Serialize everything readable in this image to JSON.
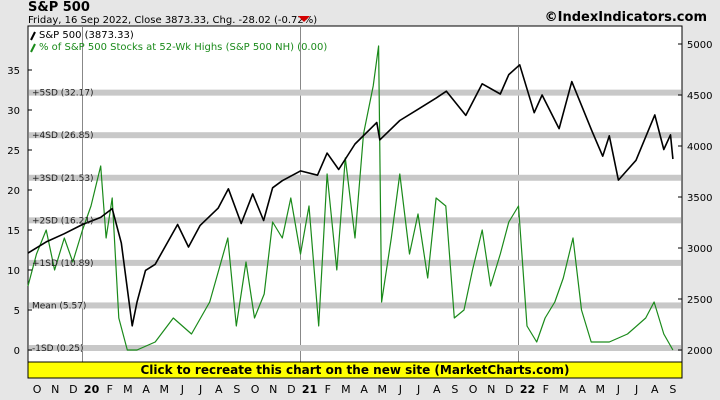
{
  "header": {
    "title": "S&P 500",
    "subtitle": "Friday, 16 Sep 2022, Close 3873.33, Chg. -28.02 (-0.72%)",
    "brand": "©IndexIndicators.com",
    "change_direction": "down"
  },
  "banner": {
    "text": "Click to recreate this chart on the new site (MarketCharts.com)"
  },
  "colors": {
    "index_line": "#000000",
    "breadth_line": "#1a8a1a",
    "band": "#c8c8c8",
    "banner_bg": "#ffff00",
    "down_arrow": "#d40000"
  },
  "chart_data": {
    "type": "line",
    "x_axis": {
      "labels": [
        "O",
        "N",
        "D",
        "20",
        "F",
        "M",
        "A",
        "M",
        "J",
        "J",
        "A",
        "S",
        "O",
        "N",
        "D",
        "21",
        "F",
        "M",
        "A",
        "M",
        "J",
        "J",
        "A",
        "S",
        "O",
        "N",
        "D",
        "22",
        "F",
        "M",
        "A",
        "M",
        "J",
        "J",
        "A",
        "S"
      ],
      "year_labels": [
        "20",
        "21",
        "22"
      ],
      "start": "2019-10",
      "end": "2022-09"
    },
    "y_left": {
      "min": 0,
      "max": 35,
      "ticks": [
        0,
        5,
        10,
        15,
        20,
        25,
        30,
        35
      ]
    },
    "y_right": {
      "min": 2000,
      "max": 5000,
      "ticks": [
        2000,
        2500,
        3000,
        3500,
        4000,
        4500,
        5000
      ]
    },
    "series": [
      {
        "name": "S&P 500 (3873.33)",
        "axis": "right",
        "points": [
          [
            "2019-10-01",
            2950
          ],
          [
            "2019-11-01",
            3060
          ],
          [
            "2019-12-01",
            3140
          ],
          [
            "2020-01-01",
            3230
          ],
          [
            "2020-02-01",
            3300
          ],
          [
            "2020-02-20",
            3386
          ],
          [
            "2020-03-05",
            3050
          ],
          [
            "2020-03-23",
            2237
          ],
          [
            "2020-04-01",
            2470
          ],
          [
            "2020-04-15",
            2780
          ],
          [
            "2020-05-01",
            2840
          ],
          [
            "2020-06-08",
            3230
          ],
          [
            "2020-06-26",
            3010
          ],
          [
            "2020-07-15",
            3220
          ],
          [
            "2020-08-15",
            3390
          ],
          [
            "2020-09-02",
            3580
          ],
          [
            "2020-09-23",
            3240
          ],
          [
            "2020-10-12",
            3530
          ],
          [
            "2020-10-30",
            3270
          ],
          [
            "2020-11-15",
            3590
          ],
          [
            "2020-12-01",
            3660
          ],
          [
            "2020-12-31",
            3756
          ],
          [
            "2021-01-29",
            3714
          ],
          [
            "2021-02-15",
            3930
          ],
          [
            "2021-03-04",
            3770
          ],
          [
            "2021-04-01",
            4020
          ],
          [
            "2021-05-07",
            4230
          ],
          [
            "2021-05-12",
            4060
          ],
          [
            "2021-06-15",
            4250
          ],
          [
            "2021-07-15",
            4360
          ],
          [
            "2021-08-15",
            4470
          ],
          [
            "2021-09-02",
            4537
          ],
          [
            "2021-10-04",
            4300
          ],
          [
            "2021-11-01",
            4610
          ],
          [
            "2021-12-01",
            4510
          ],
          [
            "2021-12-15",
            4700
          ],
          [
            "2022-01-03",
            4796
          ],
          [
            "2022-01-27",
            4326
          ],
          [
            "2022-02-10",
            4500
          ],
          [
            "2022-03-08",
            4170
          ],
          [
            "2022-03-29",
            4631
          ],
          [
            "2022-05-02",
            4150
          ],
          [
            "2022-05-20",
            3900
          ],
          [
            "2022-06-01",
            4100
          ],
          [
            "2022-06-16",
            3666
          ],
          [
            "2022-07-15",
            3860
          ],
          [
            "2022-08-16",
            4305
          ],
          [
            "2022-09-01",
            3966
          ],
          [
            "2022-09-12",
            4110
          ],
          [
            "2022-09-16",
            3873
          ]
        ]
      },
      {
        "name": "% of S&P 500 Stocks at 52-Wk Highs (S&P 500 NH) (0.00)",
        "axis": "left",
        "points": [
          [
            "2019-10-01",
            8
          ],
          [
            "2019-10-15",
            12
          ],
          [
            "2019-11-01",
            15
          ],
          [
            "2019-11-15",
            10
          ],
          [
            "2019-12-01",
            14
          ],
          [
            "2019-12-15",
            11
          ],
          [
            "2020-01-01",
            15
          ],
          [
            "2020-01-15",
            18
          ],
          [
            "2020-02-01",
            23
          ],
          [
            "2020-02-10",
            14
          ],
          [
            "2020-02-20",
            19
          ],
          [
            "2020-03-01",
            4
          ],
          [
            "2020-03-15",
            0
          ],
          [
            "2020-04-01",
            0
          ],
          [
            "2020-05-01",
            1
          ],
          [
            "2020-06-01",
            4
          ],
          [
            "2020-07-01",
            2
          ],
          [
            "2020-08-01",
            6
          ],
          [
            "2020-09-01",
            14
          ],
          [
            "2020-09-15",
            3
          ],
          [
            "2020-10-01",
            11
          ],
          [
            "2020-10-15",
            4
          ],
          [
            "2020-11-01",
            7
          ],
          [
            "2020-11-15",
            16
          ],
          [
            "2020-12-01",
            14
          ],
          [
            "2020-12-15",
            19
          ],
          [
            "2021-01-01",
            12
          ],
          [
            "2021-01-15",
            18
          ],
          [
            "2021-02-01",
            3
          ],
          [
            "2021-02-15",
            22
          ],
          [
            "2021-03-01",
            10
          ],
          [
            "2021-03-15",
            24
          ],
          [
            "2021-04-01",
            14
          ],
          [
            "2021-04-15",
            27
          ],
          [
            "2021-05-01",
            33
          ],
          [
            "2021-05-10",
            38
          ],
          [
            "2021-05-15",
            6
          ],
          [
            "2021-06-01",
            14
          ],
          [
            "2021-06-15",
            22
          ],
          [
            "2021-07-01",
            12
          ],
          [
            "2021-07-15",
            17
          ],
          [
            "2021-08-01",
            9
          ],
          [
            "2021-08-15",
            19
          ],
          [
            "2021-09-01",
            18
          ],
          [
            "2021-09-15",
            4
          ],
          [
            "2021-10-01",
            5
          ],
          [
            "2021-10-15",
            10
          ],
          [
            "2021-11-01",
            15
          ],
          [
            "2021-11-15",
            8
          ],
          [
            "2021-12-01",
            12
          ],
          [
            "2021-12-15",
            16
          ],
          [
            "2022-01-01",
            18
          ],
          [
            "2022-01-15",
            3
          ],
          [
            "2022-02-01",
            1
          ],
          [
            "2022-02-15",
            4
          ],
          [
            "2022-03-01",
            6
          ],
          [
            "2022-03-15",
            9
          ],
          [
            "2022-04-01",
            14
          ],
          [
            "2022-04-15",
            5
          ],
          [
            "2022-05-01",
            1
          ],
          [
            "2022-06-01",
            1
          ],
          [
            "2022-07-01",
            2
          ],
          [
            "2022-08-01",
            4
          ],
          [
            "2022-08-15",
            6
          ],
          [
            "2022-09-01",
            2
          ],
          [
            "2022-09-16",
            0
          ]
        ]
      }
    ],
    "bands": [
      {
        "label": "+5SD (32.17)",
        "value": 32.17
      },
      {
        "label": "+4SD (26.85)",
        "value": 26.85
      },
      {
        "label": "+3SD (21.53)",
        "value": 21.53
      },
      {
        "label": "+2SD (16.21)",
        "value": 16.21
      },
      {
        "label": "+1SD (10.89)",
        "value": 10.89
      },
      {
        "label": "Mean (5.57)",
        "value": 5.57
      },
      {
        "label": "-1SD (0.25)",
        "value": 0.25
      }
    ]
  }
}
